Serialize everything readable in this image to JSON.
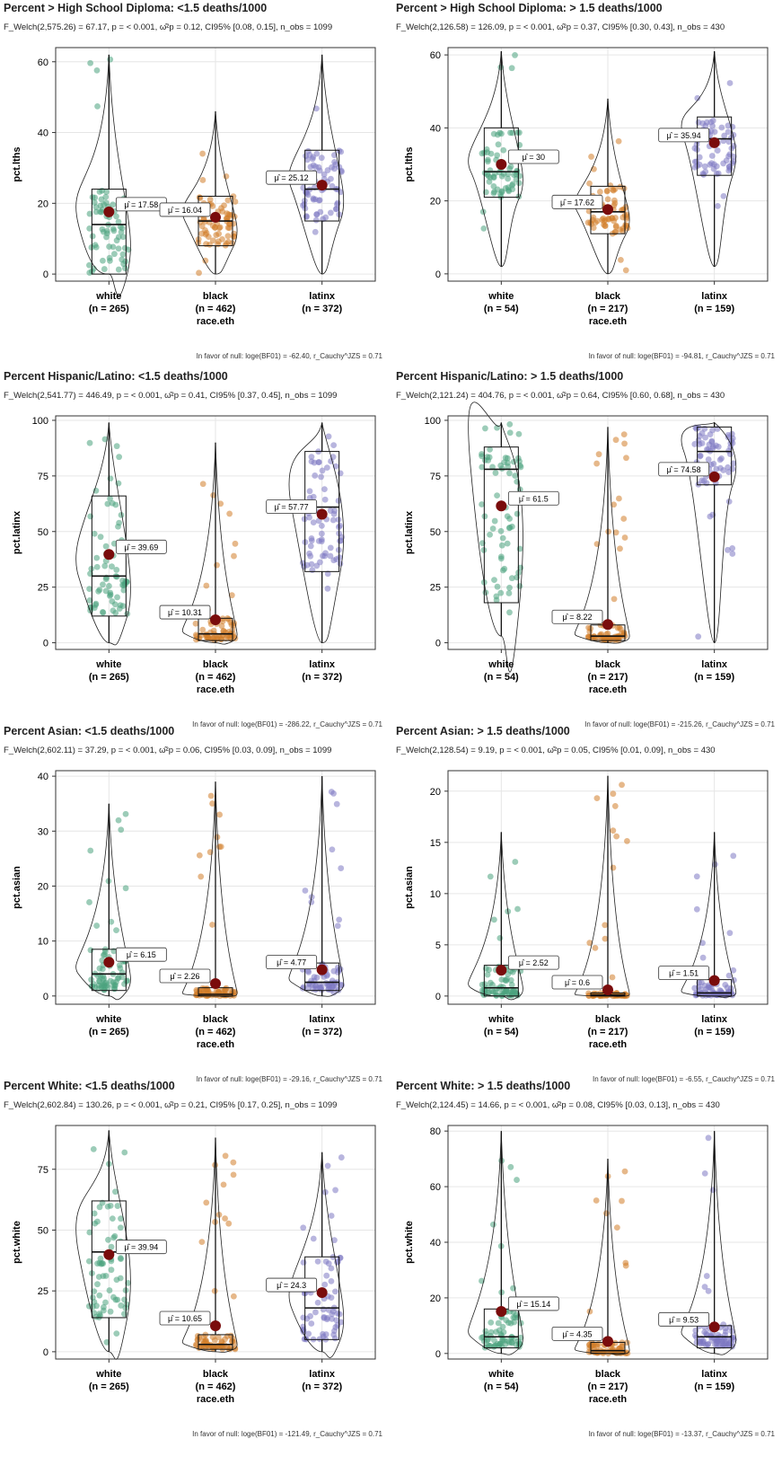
{
  "colors": {
    "white": "#4aa37e",
    "black": "#d17d2a",
    "latinx": "#7d78c2",
    "mean_marker": "#7a0c0c",
    "grid": "#e6e6e6",
    "frame": "#333333"
  },
  "chart_data": [
    {
      "type": "violin-box-scatter",
      "title": "Percent > High School Diploma: <1.5 deaths/1000",
      "stats_text": "F_Welch(2,575.26) = 67.17, p = < 0.001, ω̂²p = 0.12, CI95% [0.08, 0.15], n_obs = 1099",
      "footer_text": "In favor of null: loge(BF01) = -62.40, r_Cauchy^JZS = 0.71",
      "xlabel": "race.eth",
      "ylabel": "pct.lths",
      "yticks": [
        0,
        20,
        40,
        60
      ],
      "ylim": [
        -2,
        64
      ],
      "categories": [
        {
          "name": "white",
          "n_label": "(n = 265)",
          "mean": 17.58,
          "mean_label": "μ̂ = 17.58",
          "q1": 0,
          "median": 14,
          "q3": 24,
          "min": 0,
          "max": 62
        },
        {
          "name": "black",
          "n_label": "(n = 462)",
          "mean": 16.04,
          "mean_label": "μ̂ = 16.04",
          "q1": 8,
          "median": 15,
          "q3": 22,
          "min": 0,
          "max": 46
        },
        {
          "name": "latinx",
          "n_label": "(n = 372)",
          "mean": 25.12,
          "mean_label": "μ̂ = 25.12",
          "q1": 15,
          "median": 24,
          "q3": 35,
          "min": 0,
          "max": 62
        }
      ]
    },
    {
      "type": "violin-box-scatter",
      "title": "Percent > High School Diploma: > 1.5 deaths/1000",
      "stats_text": "F_Welch(2,126.58) = 126.09, p = < 0.001, ω̂²p = 0.37, CI95% [0.30, 0.43], n_obs = 430",
      "footer_text": "In favor of null: loge(BF01) = -94.81, r_Cauchy^JZS = 0.71",
      "xlabel": "race.eth",
      "ylabel": "pct.lths",
      "yticks": [
        0,
        20,
        40,
        60
      ],
      "ylim": [
        -2,
        62
      ],
      "categories": [
        {
          "name": "white",
          "n_label": "(n = 54)",
          "mean": 30,
          "mean_label": "μ̂ = 30",
          "q1": 21,
          "median": 28,
          "q3": 40,
          "min": 2,
          "max": 61
        },
        {
          "name": "black",
          "n_label": "(n = 217)",
          "mean": 17.62,
          "mean_label": "μ̂ = 17.62",
          "q1": 11,
          "median": 17,
          "q3": 24,
          "min": 0,
          "max": 48
        },
        {
          "name": "latinx",
          "n_label": "(n = 159)",
          "mean": 35.94,
          "mean_label": "μ̂ = 35.94",
          "q1": 27,
          "median": 37,
          "q3": 43,
          "min": 2,
          "max": 61
        }
      ]
    },
    {
      "type": "violin-box-scatter",
      "title": "Percent Hispanic/Latino: <1.5 deaths/1000",
      "stats_text": "F_Welch(2,541.77) = 446.49, p = < 0.001, ω̂²p = 0.41, CI95% [0.37, 0.45], n_obs = 1099",
      "footer_text": "In favor of null: loge(BF01) = -286.22, r_Cauchy^JZS = 0.71",
      "xlabel": "race.eth",
      "ylabel": "pct.latinx",
      "yticks": [
        0,
        25,
        50,
        75,
        100
      ],
      "ylim": [
        -3,
        102
      ],
      "categories": [
        {
          "name": "white",
          "n_label": "(n = 265)",
          "mean": 39.69,
          "mean_label": "μ̂ = 39.69",
          "q1": 12,
          "median": 30,
          "q3": 66,
          "min": 0,
          "max": 99
        },
        {
          "name": "black",
          "n_label": "(n = 462)",
          "mean": 10.31,
          "mean_label": "μ̂ = 10.31",
          "q1": 1,
          "median": 4,
          "q3": 11,
          "min": 0,
          "max": 90
        },
        {
          "name": "latinx",
          "n_label": "(n = 372)",
          "mean": 57.77,
          "mean_label": "μ̂ = 57.77",
          "q1": 32,
          "median": 61,
          "q3": 86,
          "min": 0,
          "max": 99
        }
      ]
    },
    {
      "type": "violin-box-scatter",
      "title": "Percent Hispanic/Latino: > 1.5 deaths/1000",
      "stats_text": "F_Welch(2,121.24) = 404.76, p = < 0.001, ω̂²p = 0.64, CI95% [0.60, 0.68], n_obs = 430",
      "footer_text": "In favor of null: loge(BF01) = -215.26, r_Cauchy^JZS = 0.71",
      "xlabel": "race.eth",
      "ylabel": "pct.latinx",
      "yticks": [
        0,
        25,
        50,
        75,
        100
      ],
      "ylim": [
        -3,
        102
      ],
      "categories": [
        {
          "name": "white",
          "n_label": "(n = 54)",
          "mean": 61.5,
          "mean_label": "μ̂ = 61.5",
          "q1": 18,
          "median": 78,
          "q3": 88,
          "min": 3,
          "max": 99
        },
        {
          "name": "black",
          "n_label": "(n = 217)",
          "mean": 8.22,
          "mean_label": "μ̂ = 8.22",
          "q1": 1,
          "median": 3,
          "q3": 8,
          "min": 0,
          "max": 97
        },
        {
          "name": "latinx",
          "n_label": "(n = 159)",
          "mean": 74.58,
          "mean_label": "μ̂ = 74.58",
          "q1": 71,
          "median": 86,
          "q3": 97,
          "min": 0,
          "max": 99
        }
      ]
    },
    {
      "type": "violin-box-scatter",
      "title": "Percent Asian: <1.5 deaths/1000",
      "stats_text": "F_Welch(2,602.11) = 37.29, p = < 0.001, ω̂²p = 0.06, CI95% [0.03, 0.09], n_obs = 1099",
      "footer_text": "In favor of null: loge(BF01) = -29.16, r_Cauchy^JZS = 0.71",
      "xlabel": "race.eth",
      "ylabel": "pct.asian",
      "yticks": [
        0,
        10,
        20,
        30,
        40
      ],
      "ylim": [
        -1.5,
        41
      ],
      "categories": [
        {
          "name": "white",
          "n_label": "(n = 265)",
          "mean": 6.15,
          "mean_label": "μ̂ = 6.15",
          "q1": 1,
          "median": 4,
          "q3": 8.5,
          "min": 0,
          "max": 35
        },
        {
          "name": "black",
          "n_label": "(n = 462)",
          "mean": 2.26,
          "mean_label": "μ̂ = 2.26",
          "q1": 0,
          "median": 0.3,
          "q3": 1.5,
          "min": 0,
          "max": 39
        },
        {
          "name": "latinx",
          "n_label": "(n = 372)",
          "mean": 4.77,
          "mean_label": "μ̂ = 4.77",
          "q1": 1,
          "median": 2.5,
          "q3": 6,
          "min": 0,
          "max": 40
        }
      ]
    },
    {
      "type": "violin-box-scatter",
      "title": "Percent Asian: > 1.5 deaths/1000",
      "stats_text": "F_Welch(2,128.54) = 9.19, p = < 0.001, ω̂²p = 0.05, CI95% [0.01, 0.09], n_obs = 430",
      "footer_text": "In favor of null: loge(BF01) = -6.55, r_Cauchy^JZS = 0.71",
      "xlabel": "race.eth",
      "ylabel": "pct.asian",
      "yticks": [
        0,
        5,
        10,
        15,
        20
      ],
      "ylim": [
        -0.8,
        22
      ],
      "categories": [
        {
          "name": "white",
          "n_label": "(n = 54)",
          "mean": 2.52,
          "mean_label": "μ̂ = 2.52",
          "q1": 0,
          "median": 0.8,
          "q3": 3,
          "min": 0,
          "max": 16
        },
        {
          "name": "black",
          "n_label": "(n = 217)",
          "mean": 0.6,
          "mean_label": "μ̂ = 0.6",
          "q1": 0,
          "median": 0.1,
          "q3": 0.3,
          "min": 0,
          "max": 21.5
        },
        {
          "name": "latinx",
          "n_label": "(n = 159)",
          "mean": 1.51,
          "mean_label": "μ̂ = 1.51",
          "q1": 0,
          "median": 0.3,
          "q3": 1.6,
          "min": 0,
          "max": 16
        }
      ]
    },
    {
      "type": "violin-box-scatter",
      "title": "Percent White: <1.5 deaths/1000",
      "stats_text": "F_Welch(2,602.84) = 130.26, p = < 0.001, ω̂²p = 0.21, CI95% [0.17, 0.25], n_obs = 1099",
      "footer_text": "In favor of null: loge(BF01) = -121.49, r_Cauchy^JZS = 0.71",
      "xlabel": "race.eth",
      "ylabel": "pct.white",
      "yticks": [
        0,
        25,
        50,
        75
      ],
      "ylim": [
        -3,
        93
      ],
      "categories": [
        {
          "name": "white",
          "n_label": "(n = 265)",
          "mean": 39.94,
          "mean_label": "μ̂ = 39.94",
          "q1": 14,
          "median": 41,
          "q3": 62,
          "min": 0,
          "max": 91
        },
        {
          "name": "black",
          "n_label": "(n = 462)",
          "mean": 10.65,
          "mean_label": "μ̂ = 10.65",
          "q1": 1,
          "median": 3,
          "q3": 7,
          "min": 0,
          "max": 88
        },
        {
          "name": "latinx",
          "n_label": "(n = 372)",
          "mean": 24.3,
          "mean_label": "μ̂ = 24.3",
          "q1": 5,
          "median": 18,
          "q3": 39,
          "min": 0,
          "max": 82
        }
      ]
    },
    {
      "type": "violin-box-scatter",
      "title": "Percent White: > 1.5 deaths/1000",
      "stats_text": "F_Welch(2,124.45) = 14.66, p = < 0.001, ω̂²p = 0.08, CI95% [0.03, 0.13], n_obs = 430",
      "footer_text": "In favor of null: loge(BF01) = -13.37, r_Cauchy^JZS = 0.71",
      "xlabel": "race.eth",
      "ylabel": "pct.white",
      "yticks": [
        0,
        20,
        40,
        60,
        80
      ],
      "ylim": [
        -2,
        82
      ],
      "categories": [
        {
          "name": "white",
          "n_label": "(n = 54)",
          "mean": 15.14,
          "mean_label": "μ̂ = 15.14",
          "q1": 2,
          "median": 6,
          "q3": 16,
          "min": 0,
          "max": 80
        },
        {
          "name": "black",
          "n_label": "(n = 217)",
          "mean": 4.35,
          "mean_label": "μ̂ = 4.35",
          "q1": 0,
          "median": 1,
          "q3": 4,
          "min": 0,
          "max": 70
        },
        {
          "name": "latinx",
          "n_label": "(n = 159)",
          "mean": 9.53,
          "mean_label": "μ̂ = 9.53",
          "q1": 2,
          "median": 6,
          "q3": 10,
          "min": 0,
          "max": 80
        }
      ]
    }
  ]
}
